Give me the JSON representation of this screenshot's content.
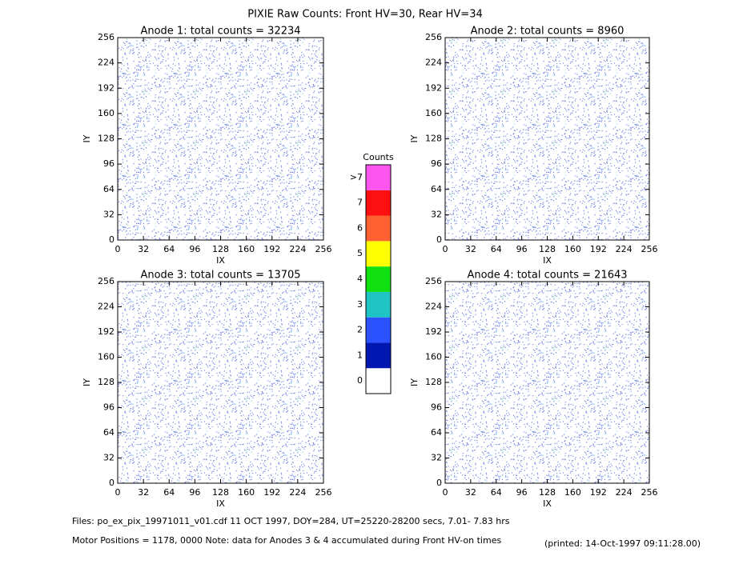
{
  "title": "PIXIE Raw Counts:  Front HV=30, Rear HV=34",
  "colorbar": {
    "title": "Counts",
    "labels": [
      "0",
      "1",
      "2",
      "3",
      "4",
      "5",
      "6",
      "7",
      ">7"
    ],
    "colors": [
      "#ffffff",
      "#0018b0",
      "#2c52ff",
      "#20c4c4",
      "#10e010",
      "#ffff00",
      "#ff6030",
      "#ff1010",
      "#ff55f0"
    ]
  },
  "footer": {
    "files": "Files: po_ex_pix_19971011_v01.cdf    11 OCT 1997, DOY=284, UT=25220-28200 secs,  7.01- 7.83 hrs",
    "note": "Motor Positions = 1178, 0000   Note: data for Anodes 3 & 4 accumulated during Front HV-on times",
    "printed": "(printed: 14-Oct-1997 09:11:28.00)"
  },
  "chart_data": [
    {
      "type": "heatmap",
      "title": "Anode 1: total counts = 32234",
      "xlabel": "IX",
      "ylabel": "IY",
      "xlim": [
        0,
        256
      ],
      "ylim": [
        0,
        256
      ],
      "xticks": [
        0,
        32,
        64,
        96,
        128,
        160,
        192,
        224,
        256
      ],
      "yticks": [
        0,
        32,
        64,
        96,
        128,
        160,
        192,
        224,
        256
      ]
    },
    {
      "type": "heatmap",
      "title": "Anode 2: total counts = 8960",
      "xlabel": "IX",
      "ylabel": "IY",
      "xlim": [
        0,
        256
      ],
      "ylim": [
        0,
        256
      ],
      "xticks": [
        0,
        32,
        64,
        96,
        128,
        160,
        192,
        224,
        256
      ],
      "yticks": [
        0,
        32,
        64,
        96,
        128,
        160,
        192,
        224,
        256
      ]
    },
    {
      "type": "heatmap",
      "title": "Anode 3: total counts = 13705",
      "xlabel": "IX",
      "ylabel": "IY",
      "xlim": [
        0,
        256
      ],
      "ylim": [
        0,
        256
      ],
      "xticks": [
        0,
        32,
        64,
        96,
        128,
        160,
        192,
        224,
        256
      ],
      "yticks": [
        0,
        32,
        64,
        96,
        128,
        160,
        192,
        224,
        256
      ]
    },
    {
      "type": "heatmap",
      "title": "Anode 4: total counts = 21643",
      "xlabel": "IX",
      "ylabel": "IY",
      "xlim": [
        0,
        256
      ],
      "ylim": [
        0,
        256
      ],
      "xticks": [
        0,
        32,
        64,
        96,
        128,
        160,
        192,
        224,
        256
      ],
      "yticks": [
        0,
        32,
        64,
        96,
        128,
        160,
        192,
        224,
        256
      ]
    }
  ]
}
